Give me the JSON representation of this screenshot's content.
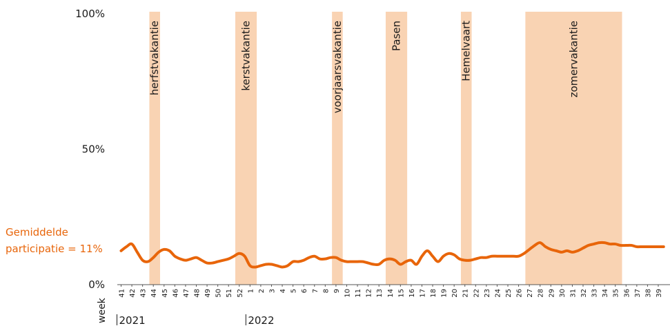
{
  "chart_data": {
    "type": "line",
    "title": "",
    "xlabel": "week",
    "ylabel": "",
    "ylim": [
      0,
      100
    ],
    "yticks": [
      "0%",
      "50%",
      "100%"
    ],
    "grid": false,
    "weeks": [
      "41",
      "42",
      "43",
      "44",
      "45",
      "46",
      "47",
      "48",
      "49",
      "50",
      "51",
      "52",
      "1",
      "2",
      "3",
      "4",
      "5",
      "6",
      "7",
      "8",
      "9",
      "10",
      "11",
      "12",
      "13",
      "14",
      "15",
      "16",
      "17",
      "18",
      "19",
      "20",
      "21",
      "22",
      "23",
      "24",
      "25",
      "26",
      "27",
      "28",
      "29",
      "30",
      "31",
      "32",
      "33",
      "34",
      "35",
      "36",
      "37",
      "38",
      "39"
    ],
    "years": [
      {
        "label": "2021",
        "start_week": "41"
      },
      {
        "label": "2022",
        "start_week": "1"
      }
    ],
    "average_label": [
      "Gemiddelde",
      "participatie = 11%"
    ],
    "average_value": 11,
    "line_color": "#e8650a",
    "band_color": "#f9d3b3",
    "holidays": [
      {
        "label": "herfstvakantie",
        "start": 44,
        "end": 45
      },
      {
        "label": "kerstvakantie",
        "start": 52,
        "end": 54
      },
      {
        "label": "voorjaarsvakantie",
        "start": 61,
        "end": 62
      },
      {
        "label": "Pasen",
        "start": 66,
        "end": 68
      },
      {
        "label": "Hemelvaart",
        "start": 73,
        "end": 74
      },
      {
        "label": "zomervakantie",
        "start": 79,
        "end": 88
      }
    ],
    "series": [
      {
        "x": [
          41,
          41.5,
          42,
          42.5,
          43,
          43.5,
          44,
          44.5,
          45,
          45.5,
          46,
          46.5,
          47,
          47.5,
          48,
          48.5,
          49,
          49.5,
          50,
          50.5,
          51,
          51.5,
          52,
          52.5,
          53,
          53.5,
          54,
          54.5,
          55,
          55.5,
          56,
          56.5,
          57,
          57.5,
          58,
          58.5,
          59,
          59.5,
          60,
          60.5,
          61,
          61.5,
          62,
          62.5,
          63,
          63.5,
          64,
          64.5,
          65,
          65.5,
          66,
          66.5,
          67,
          67.5,
          68,
          68.5,
          69,
          69.5,
          70,
          70.5,
          71,
          71.5,
          72,
          72.5,
          73,
          73.5,
          74,
          74.5,
          75,
          75.5,
          76,
          76.5,
          77,
          77.5,
          78,
          78.5,
          79,
          79.5,
          80,
          80.5,
          81,
          81.5,
          82,
          82.5,
          83,
          83.5,
          84,
          84.5,
          85,
          85.5,
          86,
          86.5,
          87,
          87.5,
          88,
          88.5,
          89,
          89.5,
          90,
          90.5,
          91,
          91.5
        ],
        "values": [
          12.5,
          14,
          15,
          12,
          9,
          8.5,
          10,
          12,
          13,
          12.5,
          10.5,
          9.5,
          9,
          9.5,
          10,
          9,
          8,
          8,
          8.5,
          9,
          9.5,
          10.5,
          11.5,
          10.5,
          7,
          6.5,
          7,
          7.5,
          7.5,
          7,
          6.5,
          7,
          8.5,
          8.5,
          9,
          10,
          10.5,
          9.5,
          9.5,
          10,
          10,
          9,
          8.5,
          8.5,
          8.5,
          8.5,
          8,
          7.5,
          7.5,
          9,
          9.5,
          9,
          7.5,
          8.5,
          9,
          7.5,
          10.5,
          12.5,
          10.5,
          8.5,
          10.5,
          11.5,
          11,
          9.5,
          9,
          9,
          9.5,
          10,
          10,
          10.5,
          10.5,
          10.5,
          10.5,
          10.5,
          10.5,
          11.5,
          13,
          14.5,
          15.5,
          14,
          13,
          12.5,
          12,
          12.5,
          12,
          12.5,
          13.5,
          14.5,
          15,
          15.5,
          15.5,
          15,
          15,
          14.5,
          14.5,
          14.5,
          14,
          14,
          14,
          14,
          14,
          14
        ]
      }
    ]
  }
}
